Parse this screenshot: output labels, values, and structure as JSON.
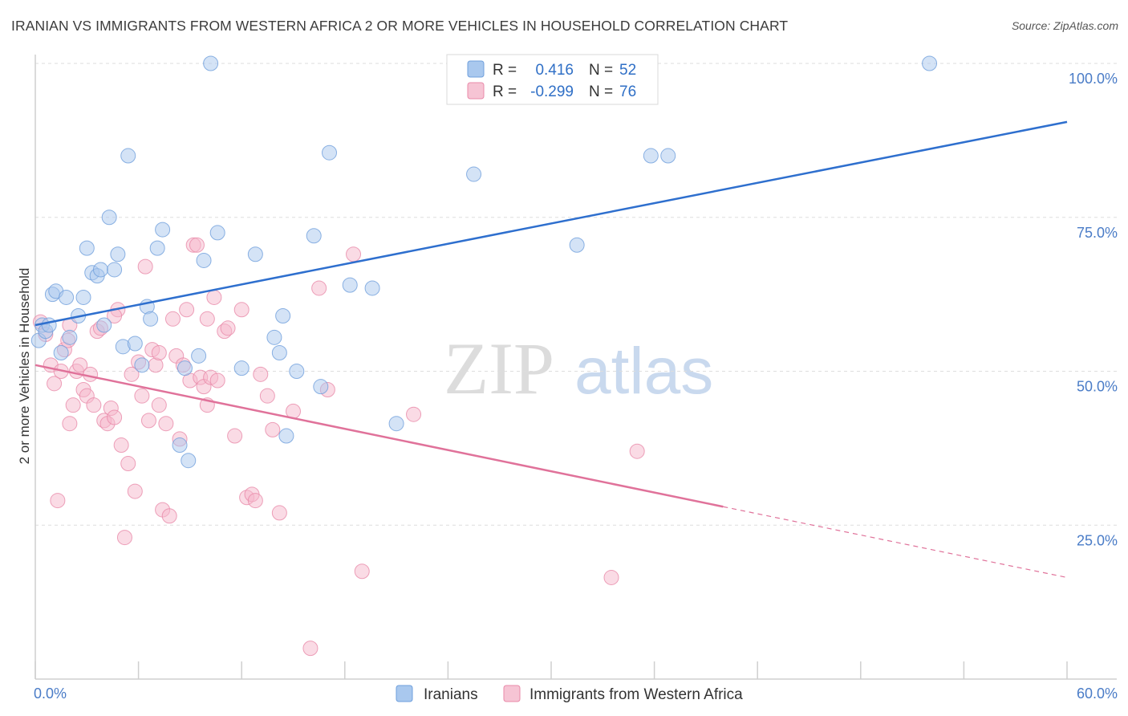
{
  "title": "IRANIAN VS IMMIGRANTS FROM WESTERN AFRICA 2 OR MORE VEHICLES IN HOUSEHOLD CORRELATION CHART",
  "source": "Source: ZipAtlas.com",
  "colors": {
    "blue_fill": "#a9c8ee",
    "blue_stroke": "#6f9fdc",
    "blue_line": "#2e6fce",
    "pink_fill": "#f6b8cb",
    "pink_stroke": "#e98aa9",
    "pink_line": "#e0729a",
    "grid": "#dddddd",
    "tick_label": "#4a7cc7"
  },
  "legend": {
    "rows": [
      {
        "r_label": "R =",
        "r_value": "0.416",
        "n_label": "N =",
        "n_value": "52"
      },
      {
        "r_label": "R =",
        "r_value": "-0.299",
        "n_label": "N =",
        "n_value": "76"
      }
    ]
  },
  "watermark": {
    "zip": "ZIP",
    "atlas": "atlas"
  },
  "chart_data": {
    "type": "scatter",
    "title": "IRANIAN VS IMMIGRANTS FROM WESTERN AFRICA 2 OR MORE VEHICLES IN HOUSEHOLD CORRELATION CHART",
    "xlabel": "",
    "ylabel": "2 or more Vehicles in Household",
    "xlim": [
      0,
      60
    ],
    "ylim": [
      0,
      105
    ],
    "x_tick_labels": [
      "0.0%",
      "60.0%"
    ],
    "y_tick_labels": [
      "100.0%",
      "75.0%",
      "50.0%",
      "25.0%"
    ],
    "y_ticks": [
      100,
      75,
      50,
      25
    ],
    "grid": true,
    "legend_position": "top-center",
    "series": [
      {
        "name": "Iranians",
        "trend": {
          "x0": 0,
          "y0": 57.5,
          "x1": 60,
          "y1": 90.5,
          "dashed_from": null
        },
        "points": [
          [
            0.2,
            55.0
          ],
          [
            0.4,
            57.5
          ],
          [
            0.6,
            56.5
          ],
          [
            0.8,
            57.5
          ],
          [
            1.0,
            62.5
          ],
          [
            1.2,
            63.0
          ],
          [
            1.5,
            53.0
          ],
          [
            1.8,
            62.0
          ],
          [
            2.0,
            55.5
          ],
          [
            2.5,
            59.0
          ],
          [
            2.8,
            62.0
          ],
          [
            3.0,
            70.0
          ],
          [
            3.3,
            66.0
          ],
          [
            3.6,
            65.5
          ],
          [
            3.8,
            66.5
          ],
          [
            4.0,
            57.5
          ],
          [
            4.3,
            75.0
          ],
          [
            4.6,
            66.5
          ],
          [
            4.8,
            69.0
          ],
          [
            5.1,
            54.0
          ],
          [
            5.4,
            85.0
          ],
          [
            5.8,
            54.5
          ],
          [
            6.2,
            51.0
          ],
          [
            6.5,
            60.5
          ],
          [
            6.7,
            58.5
          ],
          [
            7.1,
            70.0
          ],
          [
            7.4,
            73.0
          ],
          [
            8.4,
            38.0
          ],
          [
            8.7,
            50.5
          ],
          [
            8.9,
            35.5
          ],
          [
            9.5,
            52.5
          ],
          [
            9.8,
            68.0
          ],
          [
            10.2,
            100.0
          ],
          [
            10.6,
            72.5
          ],
          [
            12.0,
            50.5
          ],
          [
            12.8,
            69.0
          ],
          [
            13.9,
            55.5
          ],
          [
            14.2,
            53.0
          ],
          [
            14.4,
            59.0
          ],
          [
            14.6,
            39.5
          ],
          [
            15.2,
            50.0
          ],
          [
            16.2,
            72.0
          ],
          [
            16.6,
            47.5
          ],
          [
            17.1,
            85.5
          ],
          [
            18.3,
            64.0
          ],
          [
            19.6,
            63.5
          ],
          [
            21.0,
            41.5
          ],
          [
            25.5,
            82.0
          ],
          [
            31.5,
            70.5
          ],
          [
            35.8,
            85.0
          ],
          [
            36.8,
            85.0
          ],
          [
            52.0,
            100.0
          ]
        ]
      },
      {
        "name": "Immigrants from Western Africa",
        "trend": {
          "x0": 0,
          "y0": 51.0,
          "x1": 60,
          "y1": 16.5,
          "dashed_from": 40
        },
        "points": [
          [
            0.3,
            58.0
          ],
          [
            0.6,
            56.0
          ],
          [
            0.9,
            51.0
          ],
          [
            1.1,
            48.0
          ],
          [
            1.3,
            29.0
          ],
          [
            1.5,
            50.0
          ],
          [
            1.7,
            53.5
          ],
          [
            1.9,
            55.0
          ],
          [
            2.0,
            41.5
          ],
          [
            2.2,
            44.5
          ],
          [
            2.4,
            50.0
          ],
          [
            2.6,
            51.0
          ],
          [
            2.8,
            47.0
          ],
          [
            3.0,
            46.0
          ],
          [
            3.2,
            49.5
          ],
          [
            3.4,
            44.5
          ],
          [
            3.6,
            56.5
          ],
          [
            3.8,
            57.0
          ],
          [
            4.0,
            42.0
          ],
          [
            4.2,
            41.5
          ],
          [
            4.4,
            44.0
          ],
          [
            4.6,
            42.5
          ],
          [
            4.8,
            60.0
          ],
          [
            5.0,
            38.0
          ],
          [
            5.2,
            23.0
          ],
          [
            5.4,
            35.0
          ],
          [
            5.6,
            49.5
          ],
          [
            5.8,
            30.5
          ],
          [
            6.0,
            51.5
          ],
          [
            6.2,
            46.0
          ],
          [
            6.4,
            67.0
          ],
          [
            6.6,
            42.0
          ],
          [
            6.8,
            53.5
          ],
          [
            7.0,
            51.0
          ],
          [
            7.2,
            44.5
          ],
          [
            7.4,
            27.5
          ],
          [
            7.6,
            41.5
          ],
          [
            7.8,
            26.5
          ],
          [
            8.0,
            58.5
          ],
          [
            8.2,
            52.5
          ],
          [
            8.4,
            39.0
          ],
          [
            8.6,
            51.0
          ],
          [
            8.8,
            60.0
          ],
          [
            9.0,
            48.5
          ],
          [
            9.2,
            70.5
          ],
          [
            9.4,
            70.5
          ],
          [
            9.6,
            49.0
          ],
          [
            9.8,
            47.5
          ],
          [
            10.0,
            44.5
          ],
          [
            10.2,
            49.0
          ],
          [
            10.4,
            62.0
          ],
          [
            10.6,
            48.5
          ],
          [
            11.0,
            56.5
          ],
          [
            11.2,
            57.0
          ],
          [
            11.6,
            39.5
          ],
          [
            12.0,
            60.0
          ],
          [
            12.3,
            29.5
          ],
          [
            12.6,
            30.0
          ],
          [
            12.8,
            29.0
          ],
          [
            13.1,
            49.5
          ],
          [
            13.5,
            46.0
          ],
          [
            13.8,
            40.5
          ],
          [
            14.2,
            27.0
          ],
          [
            15.0,
            43.5
          ],
          [
            16.0,
            5.0
          ],
          [
            16.5,
            63.5
          ],
          [
            17.0,
            47.0
          ],
          [
            18.5,
            69.0
          ],
          [
            19.0,
            17.5
          ],
          [
            22.0,
            43.0
          ],
          [
            33.5,
            16.5
          ],
          [
            35.0,
            37.0
          ],
          [
            2.0,
            57.5
          ],
          [
            4.6,
            59.0
          ],
          [
            7.2,
            53.0
          ],
          [
            10.0,
            58.5
          ]
        ]
      }
    ]
  },
  "bottom_legend": [
    {
      "label": "Iranians"
    },
    {
      "label": "Immigrants from Western Africa"
    }
  ]
}
